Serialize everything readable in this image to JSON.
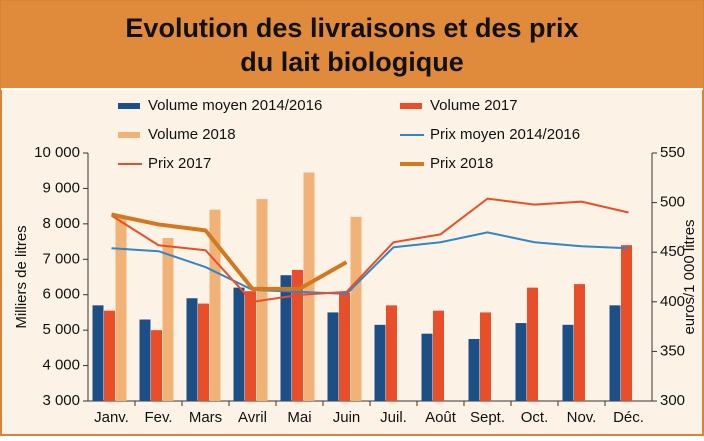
{
  "chart_data": {
    "type": "bar",
    "title": [
      "Evolution des livraisons et des prix",
      "du lait biologique"
    ],
    "y_label": "Milliers de litres",
    "y2_label": "euros/1 000 litres",
    "categories": [
      "Janv.",
      "Fev.",
      "Mars",
      "Avril",
      "Mai",
      "Juin",
      "Juil.",
      "Août",
      "Sept.",
      "Oct.",
      "Nov.",
      "Déc."
    ],
    "ylim": [
      3000,
      10000
    ],
    "yticks": [
      {
        "value": 3000,
        "label": "3 000"
      },
      {
        "value": 4000,
        "label": "4 000"
      },
      {
        "value": 5000,
        "label": "5 000"
      },
      {
        "value": 6000,
        "label": "6 000"
      },
      {
        "value": 7000,
        "label": "7 000"
      },
      {
        "value": 8000,
        "label": "8 000"
      },
      {
        "value": 9000,
        "label": "9 000"
      },
      {
        "value": 10000,
        "label": "10 000"
      }
    ],
    "y2lim": [
      300,
      550
    ],
    "y2ticks": [
      300,
      350,
      400,
      450,
      500,
      550
    ],
    "series": [
      {
        "name": "Volume moyen 2014/2016",
        "type": "bar",
        "color": "#1b4f86",
        "values": [
          5700,
          5300,
          5900,
          6200,
          6550,
          5500,
          5150,
          4900,
          4750,
          5200,
          5150,
          5700
        ]
      },
      {
        "name": "Volume 2017",
        "type": "bar",
        "color": "#e94e2a",
        "values": [
          5550,
          5000,
          5750,
          6100,
          6700,
          6050,
          5700,
          5550,
          5500,
          6200,
          6300,
          7400
        ]
      },
      {
        "name": "Volume 2018",
        "type": "bar",
        "color": "#f0b276",
        "values": [
          8200,
          7600,
          8400,
          8700,
          9450,
          8200,
          null,
          null,
          null,
          null,
          null,
          null
        ]
      },
      {
        "name": "Prix moyen 2014/2016",
        "type": "line",
        "axis": "y2",
        "color": "#2f86c9",
        "width": 2,
        "values": [
          454,
          451,
          435,
          412,
          410,
          408,
          455,
          460,
          470,
          460,
          456,
          454
        ]
      },
      {
        "name": "Prix 2017",
        "type": "line",
        "axis": "y2",
        "color": "#e94e2a",
        "width": 2,
        "values": [
          487,
          457,
          452,
          400,
          407,
          410,
          460,
          468,
          504,
          498,
          501,
          490
        ]
      },
      {
        "name": "Prix 2018",
        "type": "line",
        "axis": "y2",
        "color": "#d4781e",
        "width": 4,
        "values": [
          488,
          478,
          472,
          413,
          413,
          440,
          null,
          null,
          null,
          null,
          null,
          null
        ]
      }
    ]
  }
}
